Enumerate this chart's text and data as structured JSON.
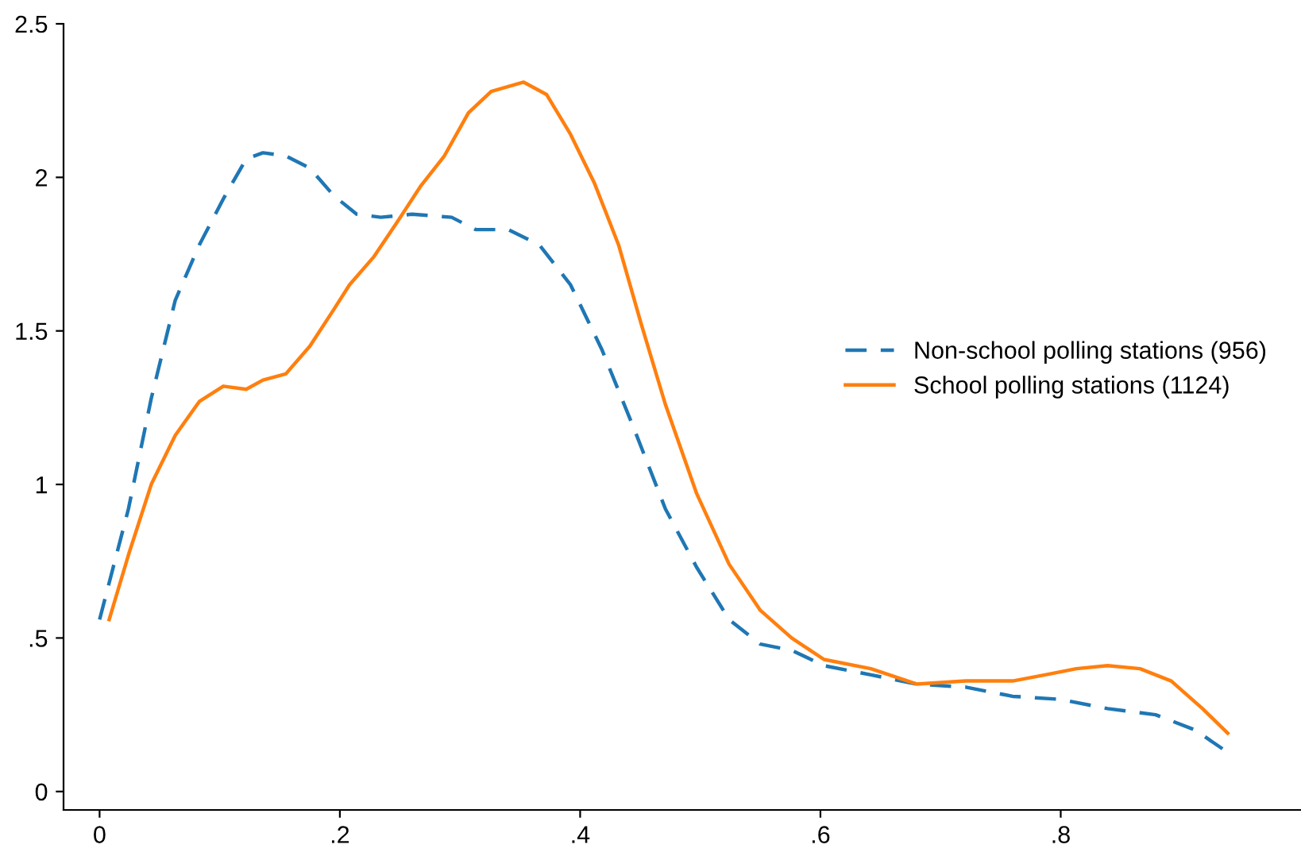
{
  "chart_data": {
    "type": "line",
    "xlim": [
      -0.03,
      1.0
    ],
    "ylim": [
      -0.06,
      2.5
    ],
    "xticks": [
      0,
      {
        "value": 0.2,
        "label": ".2"
      },
      {
        "value": 0.4,
        "label": ".4"
      },
      {
        "value": 0.6,
        "label": ".6"
      },
      {
        "value": 0.8,
        "label": ".8"
      }
    ],
    "yticks": [
      0,
      {
        "value": 0.5,
        "label": ".5"
      },
      1,
      1.5,
      2,
      2.5
    ],
    "grid": false,
    "legend": "right",
    "marker": "none",
    "series": [
      {
        "name": "Non-school polling stations (956)",
        "color": "#1f77b4",
        "line_style": "dashed",
        "x": [
          0.0,
          0.024,
          0.043,
          0.063,
          0.083,
          0.103,
          0.122,
          0.136,
          0.155,
          0.175,
          0.195,
          0.214,
          0.234,
          0.26,
          0.293,
          0.313,
          0.34,
          0.366,
          0.392,
          0.418,
          0.445,
          0.471,
          0.497,
          0.524,
          0.55,
          0.576,
          0.603,
          0.642,
          0.68,
          0.721,
          0.76,
          0.8,
          0.839,
          0.879,
          0.912,
          0.938
        ],
        "values": [
          0.56,
          0.92,
          1.28,
          1.6,
          1.78,
          1.93,
          2.06,
          2.08,
          2.07,
          2.03,
          1.94,
          1.88,
          1.87,
          1.88,
          1.87,
          1.83,
          1.83,
          1.78,
          1.65,
          1.44,
          1.18,
          0.92,
          0.73,
          0.56,
          0.48,
          0.46,
          0.41,
          0.38,
          0.35,
          0.34,
          0.31,
          0.3,
          0.27,
          0.25,
          0.2,
          0.13
        ]
      },
      {
        "name": "School polling stations (1124)",
        "color": "#ff7f0e",
        "line_style": "solid",
        "x": [
          0.008,
          0.024,
          0.043,
          0.063,
          0.083,
          0.103,
          0.122,
          0.136,
          0.155,
          0.175,
          0.195,
          0.208,
          0.228,
          0.247,
          0.267,
          0.287,
          0.307,
          0.326,
          0.353,
          0.372,
          0.392,
          0.412,
          0.432,
          0.451,
          0.471,
          0.497,
          0.524,
          0.55,
          0.576,
          0.603,
          0.642,
          0.68,
          0.721,
          0.76,
          0.787,
          0.813,
          0.839,
          0.866,
          0.892,
          0.918,
          0.939
        ],
        "values": [
          0.56,
          0.77,
          1.0,
          1.16,
          1.27,
          1.32,
          1.31,
          1.34,
          1.36,
          1.45,
          1.57,
          1.65,
          1.74,
          1.85,
          1.97,
          2.07,
          2.21,
          2.28,
          2.31,
          2.27,
          2.14,
          1.98,
          1.78,
          1.52,
          1.26,
          0.97,
          0.74,
          0.59,
          0.5,
          0.43,
          0.4,
          0.35,
          0.36,
          0.36,
          0.38,
          0.4,
          0.41,
          0.4,
          0.36,
          0.27,
          0.19
        ]
      }
    ]
  }
}
